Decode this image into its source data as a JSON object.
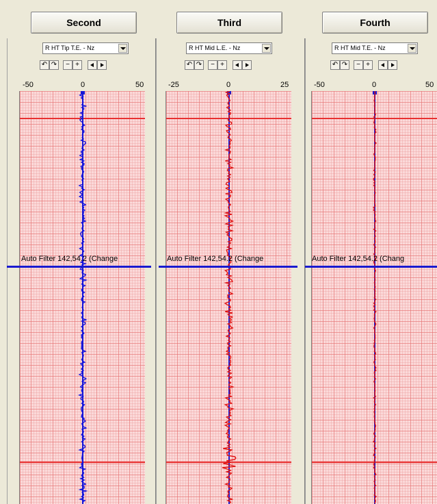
{
  "columns": [
    {
      "button": "Second",
      "channel": "R HT Tip T.E. - Nz",
      "toolbar": [
        "↶",
        "↷",
        "−",
        "+"
      ],
      "ticks": [
        "-50",
        "0",
        "50"
      ],
      "filter_text": "Auto Filter  142,54.2 (Change",
      "trace_color": "#1010e0"
    },
    {
      "button": "Third",
      "channel": "R HT Mid L.E. - Nz",
      "toolbar": [
        "↶",
        "↷",
        "−",
        "+"
      ],
      "ticks": [
        "-25",
        "0",
        "25"
      ],
      "filter_text": "Auto Filter  142,54.2 (Change",
      "trace_color": "#e01010"
    },
    {
      "button": "Fourth",
      "channel": "R HT Mid T.E. - Nz",
      "toolbar": [
        "↶",
        "↷",
        "−",
        "+"
      ],
      "ticks": [
        "-50",
        "0",
        "50"
      ],
      "filter_text": "Auto Filter  142,54.2 (Chang",
      "trace_color": "#e01010"
    }
  ],
  "colors": {
    "grid_bg": "#fbd9d9",
    "marker_red": "#e83030",
    "marker_blue": "#1a1ad0",
    "center_line": "#1a1ad0"
  }
}
